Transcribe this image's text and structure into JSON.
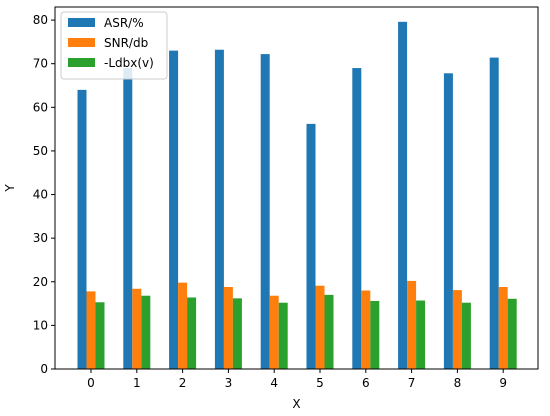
{
  "chart_data": {
    "type": "bar",
    "title": "",
    "xlabel": "X",
    "ylabel": "Y",
    "categories": [
      "0",
      "1",
      "2",
      "3",
      "4",
      "5",
      "6",
      "7",
      "8",
      "9"
    ],
    "ylim": [
      0,
      83
    ],
    "yticks": [
      0,
      10,
      20,
      30,
      40,
      50,
      60,
      70,
      80
    ],
    "grid": false,
    "legend_position": "top-left",
    "series": [
      {
        "name": "ASR/%",
        "color": "#1f77b4",
        "values": [
          64.0,
          69.0,
          73.0,
          73.2,
          72.2,
          56.2,
          69.0,
          79.6,
          67.8,
          71.4
        ]
      },
      {
        "name": "SNR/db",
        "color": "#ff7f0e",
        "values": [
          17.8,
          18.4,
          19.8,
          18.8,
          16.8,
          19.1,
          18.0,
          20.2,
          18.1,
          18.8
        ]
      },
      {
        "name": "-Ldbx(v)",
        "color": "#2ca02c",
        "values": [
          15.3,
          16.8,
          16.4,
          16.2,
          15.2,
          17.0,
          15.6,
          15.7,
          15.2,
          16.1
        ]
      }
    ]
  }
}
